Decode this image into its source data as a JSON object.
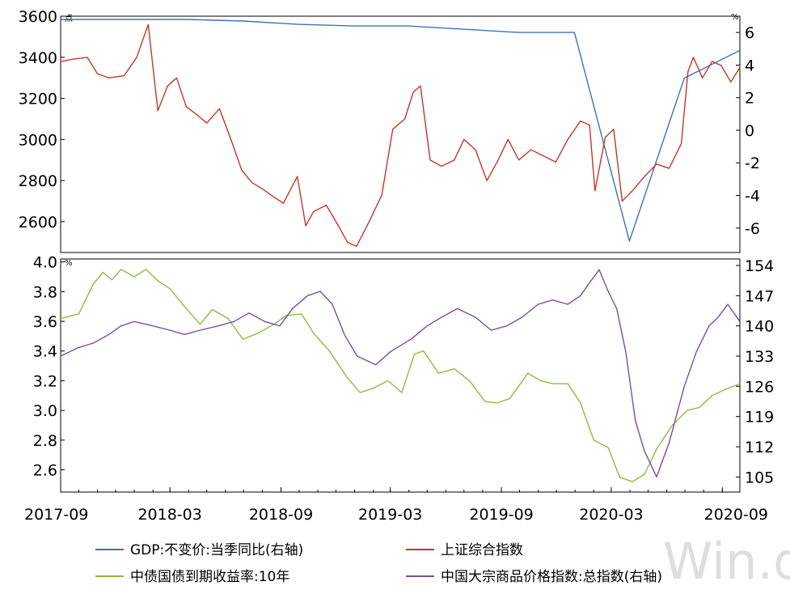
{
  "chart_data": [
    {
      "type": "line",
      "panel": "top",
      "left_unit": "点",
      "right_unit": "%",
      "left_ylim": [
        2450,
        3600
      ],
      "left_ticks": [
        "3600",
        "3400",
        "3200",
        "3000",
        "2800",
        "2600"
      ],
      "right_ylim": [
        -7.5,
        7.0
      ],
      "right_ticks": [
        "6",
        "4",
        "2",
        "0",
        "-2",
        "-4",
        "-6"
      ],
      "xlim": [
        "2017-09-01",
        "2020-09-30"
      ],
      "series": [
        {
          "name": "GDP:不变价:当季同比(右轴)",
          "axis": "right",
          "color": "#3a73b9",
          "x": [
            "2017-09-01",
            "2017-12-31",
            "2018-03-31",
            "2018-06-30",
            "2018-09-30",
            "2018-12-31",
            "2019-03-31",
            "2019-06-30",
            "2019-09-30",
            "2019-12-31",
            "2020-03-31",
            "2020-06-30",
            "2020-09-30"
          ],
          "values": [
            6.8,
            6.8,
            6.8,
            6.7,
            6.5,
            6.4,
            6.4,
            6.2,
            6.0,
            6.0,
            -6.8,
            3.2,
            4.9
          ]
        },
        {
          "name": "上证综合指数",
          "axis": "left",
          "color": "#c0392b",
          "x": [
            "2017-09-01",
            "2017-09-20",
            "2017-10-15",
            "2017-11-01",
            "2017-11-20",
            "2017-12-15",
            "2018-01-05",
            "2018-01-24",
            "2018-02-09",
            "2018-02-25",
            "2018-03-12",
            "2018-03-28",
            "2018-04-15",
            "2018-05-01",
            "2018-05-22",
            "2018-06-10",
            "2018-06-28",
            "2018-07-15",
            "2018-08-01",
            "2018-08-20",
            "2018-09-05",
            "2018-09-28",
            "2018-10-12",
            "2018-10-25",
            "2018-11-15",
            "2018-12-05",
            "2018-12-20",
            "2019-01-04",
            "2019-01-25",
            "2019-02-15",
            "2019-03-05",
            "2019-03-25",
            "2019-04-08",
            "2019-04-20",
            "2019-05-06",
            "2019-05-25",
            "2019-06-15",
            "2019-07-01",
            "2019-07-20",
            "2019-08-08",
            "2019-08-25",
            "2019-09-12",
            "2019-09-30",
            "2019-10-20",
            "2019-11-10",
            "2019-11-30",
            "2019-12-20",
            "2020-01-10",
            "2020-01-25",
            "2020-02-03",
            "2020-02-20",
            "2020-03-05",
            "2020-03-19",
            "2020-04-05",
            "2020-04-25",
            "2020-05-15",
            "2020-06-05",
            "2020-06-25",
            "2020-07-06",
            "2020-07-15",
            "2020-07-30",
            "2020-08-15",
            "2020-08-30",
            "2020-09-15",
            "2020-09-30"
          ],
          "values": [
            3380,
            3390,
            3400,
            3320,
            3300,
            3310,
            3400,
            3560,
            3140,
            3260,
            3300,
            3160,
            3120,
            3080,
            3150,
            3000,
            2850,
            2790,
            2760,
            2720,
            2690,
            2820,
            2580,
            2650,
            2680,
            2580,
            2500,
            2480,
            2600,
            2730,
            3050,
            3100,
            3230,
            3260,
            2900,
            2870,
            2900,
            3000,
            2950,
            2800,
            2890,
            3000,
            2900,
            2950,
            2920,
            2890,
            3000,
            3090,
            3070,
            2750,
            3010,
            3050,
            2700,
            2750,
            2820,
            2880,
            2860,
            2980,
            3330,
            3400,
            3300,
            3380,
            3360,
            3280,
            3350
          ]
        }
      ],
      "x_ticks": [
        "2017-09",
        "2018-03",
        "2018-09",
        "2019-03",
        "2019-09",
        "2020-03",
        "2020-09"
      ]
    },
    {
      "type": "line",
      "panel": "bottom",
      "left_unit": "%",
      "left_ylim": [
        2.45,
        4.02
      ],
      "left_ticks": [
        "4.0",
        "3.8",
        "3.6",
        "3.4",
        "3.2",
        "3.0",
        "2.8",
        "2.6"
      ],
      "right_ylim": [
        101.5,
        155.5
      ],
      "right_ticks": [
        "154",
        "147",
        "140",
        "133",
        "126",
        "119",
        "112",
        "105"
      ],
      "xlim": [
        "2017-09-01",
        "2020-09-30"
      ],
      "series": [
        {
          "name": "中债国债到期收益率:10年",
          "axis": "left",
          "color": "#8cbd3f",
          "x": [
            "2017-09-01",
            "2017-10-01",
            "2017-10-25",
            "2017-11-10",
            "2017-11-25",
            "2017-12-10",
            "2018-01-01",
            "2018-01-20",
            "2018-02-10",
            "2018-03-01",
            "2018-03-25",
            "2018-04-20",
            "2018-05-10",
            "2018-06-05",
            "2018-06-30",
            "2018-07-25",
            "2018-08-20",
            "2018-09-10",
            "2018-10-05",
            "2018-10-25",
            "2018-11-20",
            "2018-12-20",
            "2019-01-10",
            "2019-02-01",
            "2019-02-25",
            "2019-03-20",
            "2019-04-10",
            "2019-04-25",
            "2019-05-20",
            "2019-06-15",
            "2019-07-10",
            "2019-08-05",
            "2019-08-25",
            "2019-09-15",
            "2019-10-15",
            "2019-11-05",
            "2019-11-25",
            "2019-12-20",
            "2020-01-10",
            "2020-02-01",
            "2020-02-25",
            "2020-03-15",
            "2020-04-05",
            "2020-04-25",
            "2020-05-15",
            "2020-06-10",
            "2020-07-05",
            "2020-07-25",
            "2020-08-15",
            "2020-09-05",
            "2020-09-30"
          ],
          "values": [
            3.62,
            3.65,
            3.85,
            3.93,
            3.88,
            3.95,
            3.9,
            3.95,
            3.87,
            3.82,
            3.7,
            3.58,
            3.68,
            3.62,
            3.48,
            3.52,
            3.58,
            3.64,
            3.65,
            3.52,
            3.4,
            3.22,
            3.12,
            3.15,
            3.2,
            3.12,
            3.38,
            3.4,
            3.25,
            3.28,
            3.2,
            3.06,
            3.05,
            3.08,
            3.25,
            3.2,
            3.18,
            3.18,
            3.05,
            2.8,
            2.75,
            2.55,
            2.52,
            2.57,
            2.74,
            2.9,
            3.0,
            3.02,
            3.1,
            3.14,
            3.18
          ]
        },
        {
          "name": "中国大宗商品价格指数:总指数(右轴)",
          "axis": "right",
          "color": "#7b4ea0",
          "x": [
            "2017-09-01",
            "2017-10-01",
            "2017-10-25",
            "2017-11-20",
            "2017-12-10",
            "2018-01-01",
            "2018-02-01",
            "2018-03-01",
            "2018-03-25",
            "2018-04-20",
            "2018-05-20",
            "2018-06-15",
            "2018-07-10",
            "2018-08-05",
            "2018-08-30",
            "2018-09-20",
            "2018-10-15",
            "2018-11-05",
            "2018-11-25",
            "2018-12-15",
            "2019-01-05",
            "2019-02-05",
            "2019-03-01",
            "2019-04-05",
            "2019-05-01",
            "2019-05-25",
            "2019-06-20",
            "2019-07-20",
            "2019-08-15",
            "2019-09-10",
            "2019-10-05",
            "2019-11-01",
            "2019-11-25",
            "2019-12-20",
            "2020-01-10",
            "2020-01-25",
            "2020-02-10",
            "2020-02-25",
            "2020-03-10",
            "2020-03-25",
            "2020-04-10",
            "2020-04-25",
            "2020-05-15",
            "2020-06-05",
            "2020-06-30",
            "2020-07-20",
            "2020-08-10",
            "2020-08-25",
            "2020-09-10",
            "2020-09-30"
          ],
          "values": [
            133,
            135,
            136,
            138,
            140,
            141,
            140,
            139,
            138,
            139,
            140,
            141,
            143,
            141,
            140,
            144,
            147,
            148,
            145,
            138,
            133,
            131,
            134,
            137,
            140,
            142,
            144,
            142,
            139,
            140,
            142,
            145,
            146,
            145,
            147,
            150,
            153,
            148,
            144,
            134,
            118,
            111,
            105,
            113,
            126,
            134,
            140,
            142,
            145,
            141
          ]
        }
      ],
      "x_ticks": [
        "2017-09",
        "2018-03",
        "2018-09",
        "2019-03",
        "2019-09",
        "2020-03",
        "2020-09"
      ]
    }
  ],
  "legend": [
    {
      "label": "GDP:不变价:当季同比(右轴)",
      "color": "#3a73b9"
    },
    {
      "label": "上证综合指数",
      "color": "#c0392b"
    },
    {
      "label": "中债国债到期收益率:10年",
      "color": "#8cbd3f"
    },
    {
      "label": "中国大宗商品价格指数:总指数(右轴)",
      "color": "#7b4ea0"
    }
  ],
  "watermark": "Win.d"
}
